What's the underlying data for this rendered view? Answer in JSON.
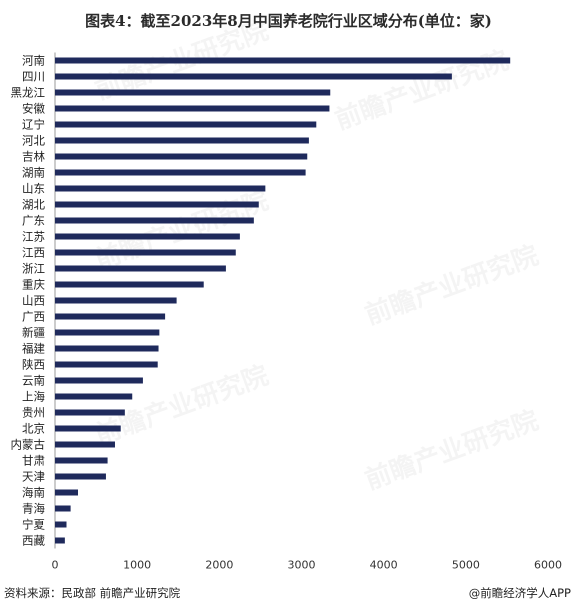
{
  "title": "图表4：截至2023年8月中国养老院行业区域分布(单位：家)",
  "source": "资料来源：民政部 前瞻产业研究院",
  "brand": "@前瞻经济学人APP",
  "watermark": "前瞻产业研究院",
  "colors": {
    "bar": "#1f2a5c",
    "axis": "#999999"
  },
  "chart_data": {
    "type": "bar",
    "orientation": "horizontal",
    "title": "图表4：截至2023年8月中国养老院行业区域分布(单位：家)",
    "xlabel": "",
    "ylabel": "",
    "xlim": [
      0,
      6000
    ],
    "xticks": [
      0,
      1000,
      2000,
      3000,
      4000,
      5000,
      6000
    ],
    "grid": false,
    "categories": [
      "河南",
      "四川",
      "黑龙江",
      "安徽",
      "辽宁",
      "河北",
      "吉林",
      "湖南",
      "山东",
      "湖北",
      "广东",
      "江苏",
      "江西",
      "浙江",
      "重庆",
      "山西",
      "广西",
      "新疆",
      "福建",
      "陕西",
      "云南",
      "上海",
      "贵州",
      "北京",
      "内蒙古",
      "甘肃",
      "天津",
      "海南",
      "青海",
      "宁夏",
      "西藏"
    ],
    "values": [
      5540,
      4830,
      3350,
      3340,
      3180,
      3090,
      3070,
      3050,
      2560,
      2480,
      2420,
      2250,
      2200,
      2080,
      1810,
      1480,
      1340,
      1270,
      1260,
      1250,
      1070,
      940,
      850,
      800,
      730,
      640,
      620,
      280,
      190,
      140,
      120
    ]
  }
}
